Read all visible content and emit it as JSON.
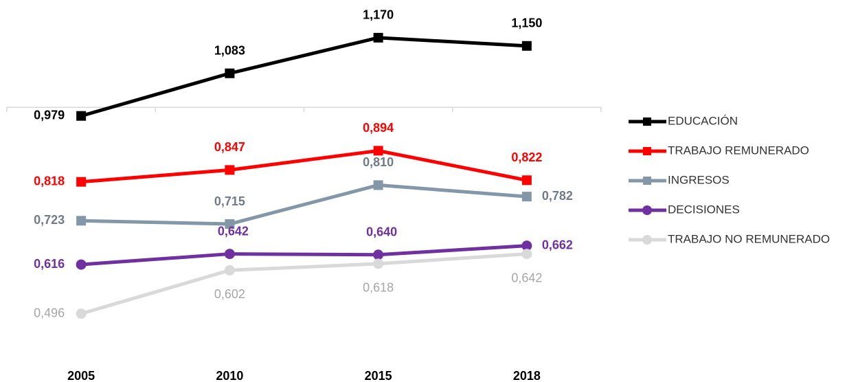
{
  "chart_data": {
    "type": "line",
    "categories": [
      "2005",
      "2010",
      "2015",
      "2018"
    ],
    "ylim": [
      0.45,
      1.2
    ],
    "x_axis_at": 1,
    "legend": "right",
    "series": [
      {
        "name": "EDUCACIÓN",
        "color": "#000000",
        "label_color": "#000000",
        "marker": "square",
        "values": [
          0.979,
          1.083,
          1.17,
          1.15
        ],
        "value_labels": [
          "0,979",
          "1,083",
          "1,170",
          "1,150"
        ]
      },
      {
        "name": "TRABAJO REMUNERADO",
        "color": "#ff0000",
        "label_color": "#ff0000",
        "marker": "square",
        "values": [
          0.818,
          0.847,
          0.894,
          0.822
        ],
        "value_labels": [
          "0,818",
          "0,847",
          "0,894",
          "0,822"
        ]
      },
      {
        "name": "INGRESOS",
        "color": "#8497a8",
        "label_color": "#6f7b86",
        "marker": "square",
        "values": [
          0.723,
          0.715,
          0.81,
          0.782
        ],
        "value_labels": [
          "0,723",
          "0,715",
          "0,810",
          "0,782"
        ]
      },
      {
        "name": "DECISIONES",
        "color": "#7030a0",
        "label_color": "#7030a0",
        "marker": "circle",
        "values": [
          0.616,
          0.642,
          0.64,
          0.662
        ],
        "value_labels": [
          "0,616",
          "0,642",
          "0,640",
          "0,662"
        ]
      },
      {
        "name": "TRABAJO NO REMUNERADO",
        "color": "#d9d9d9",
        "label_color": "#a6a6a6",
        "marker": "circle",
        "values": [
          0.496,
          0.602,
          0.618,
          0.642
        ],
        "value_labels": [
          "0,496",
          "0,602",
          "0,618",
          "0,642"
        ]
      }
    ]
  }
}
